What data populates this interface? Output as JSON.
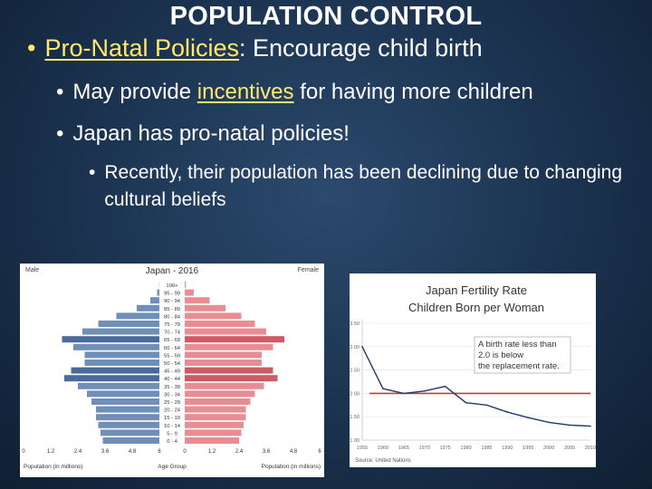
{
  "slide": {
    "title": "POPULATION CONTROL",
    "bullet1": {
      "term": "Pro-Natal Policies",
      "rest": ": Encourage child birth"
    },
    "bullet2": {
      "pre": "May provide ",
      "term": "incentives",
      "post": " for having more children"
    },
    "bullet3": {
      "text": "Japan has pro-natal policies!"
    },
    "bullet4": {
      "text": "Recently, their population has been declining due to changing cultural beliefs"
    }
  },
  "colors": {
    "male_bar": "#6f8fb8",
    "male_highlight": "#4a6a9a",
    "female_bar": "#e88d93",
    "female_highlight": "#cf5a64",
    "fertility_line": "#1f3b6b",
    "replacement_line": "#c43b3b"
  },
  "chart_data": [
    {
      "type": "bar",
      "orientation": "horizontal-back-to-back",
      "title": "Japan - 2016",
      "left_label": "Male",
      "right_label": "Female",
      "xlabel_left": "Population (in millions)",
      "xlabel_center": "Age Group",
      "xlabel_right": "Population (in millions)",
      "left_ticks": [
        "6",
        "4.8",
        "3.6",
        "2.4",
        "1.2",
        "0"
      ],
      "right_ticks": [
        "0",
        "1.2",
        "2.4",
        "3.6",
        "4.8",
        "6"
      ],
      "xlim": [
        0,
        6
      ],
      "categories": [
        "100+",
        "95 - 99",
        "90 - 94",
        "85 - 89",
        "80 - 84",
        "75 - 79",
        "70 - 74",
        "65 - 69",
        "60 - 64",
        "55 - 59",
        "50 - 54",
        "45 - 49",
        "40 - 44",
        "35 - 39",
        "30 - 34",
        "25 - 29",
        "20 - 24",
        "15 - 19",
        "10 - 14",
        "5 - 9",
        "0 - 4"
      ],
      "series": [
        {
          "name": "Male",
          "values": [
            0.01,
            0.1,
            0.4,
            1.0,
            1.9,
            2.7,
            3.4,
            4.3,
            3.8,
            3.3,
            3.3,
            3.9,
            4.2,
            3.6,
            3.2,
            3.0,
            2.8,
            2.8,
            2.7,
            2.6,
            2.5
          ]
        },
        {
          "name": "Female",
          "values": [
            0.05,
            0.4,
            1.1,
            1.8,
            2.5,
            3.1,
            3.6,
            4.4,
            3.9,
            3.4,
            3.4,
            3.9,
            4.1,
            3.5,
            3.1,
            2.9,
            2.7,
            2.7,
            2.6,
            2.5,
            2.4
          ]
        }
      ],
      "highlight_groups": [
        "65 - 69",
        "45 - 49",
        "40 - 44"
      ]
    },
    {
      "type": "line",
      "title": "Japan Fertility Rate",
      "subtitle": "Children Born per Woman",
      "source": "Source: United Nations",
      "annotation": "A birth rate less than 2.0 is below the replacement rate.",
      "x": [
        1955,
        1960,
        1965,
        1970,
        1975,
        1980,
        1985,
        1990,
        1995,
        2000,
        2005,
        2010
      ],
      "x_ticks": [
        "1955",
        "1960",
        "1965",
        "1970",
        "1975",
        "1980",
        "1985",
        "1990",
        "1995",
        "2000",
        "2005",
        "2010"
      ],
      "y_ticks": [
        "3.50",
        "3.00",
        "2.50",
        "2.00",
        "1.50",
        "1.00"
      ],
      "ylim": [
        1.0,
        3.5
      ],
      "series": [
        {
          "values": [
            3.0,
            2.1,
            2.0,
            2.05,
            2.15,
            1.8,
            1.75,
            1.6,
            1.48,
            1.38,
            1.32,
            1.3
          ]
        }
      ],
      "reference_line": 2.0
    }
  ]
}
